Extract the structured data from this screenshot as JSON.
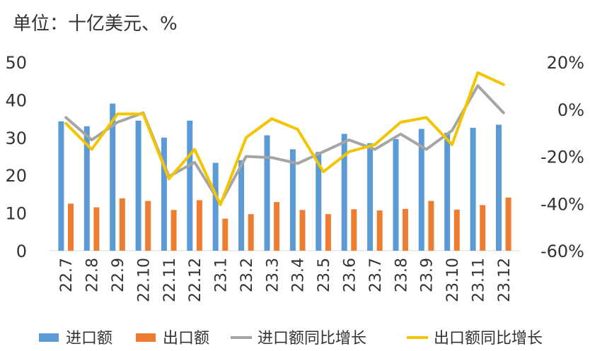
{
  "chart_data": {
    "type": "bar",
    "title": "单位：十亿美元、%",
    "categories": [
      "22.7",
      "22.8",
      "22.9",
      "22.10",
      "22.11",
      "22.12",
      "23.1",
      "23.2",
      "23.3",
      "23.4",
      "23.5",
      "23.6",
      "23.7",
      "23.8",
      "23.9",
      "23.10",
      "23.11",
      "23.12"
    ],
    "y_left": {
      "ticks": [
        0,
        10,
        20,
        30,
        40,
        50
      ],
      "range": [
        0,
        50
      ]
    },
    "y_right": {
      "ticks": [
        "20%",
        "0%",
        "-20%",
        "-40%",
        "-60%"
      ],
      "range": [
        -60,
        20
      ]
    },
    "series": [
      {
        "name": "进口额",
        "kind": "bar",
        "axis": "left",
        "color": "#5B9BD5",
        "values": [
          34.3,
          33.0,
          39.0,
          34.5,
          30.0,
          34.5,
          23.3,
          24.0,
          30.6,
          26.9,
          26.2,
          31.0,
          28.5,
          29.6,
          32.3,
          31.3,
          32.6,
          33.4
        ]
      },
      {
        "name": "出口额",
        "kind": "bar",
        "axis": "left",
        "color": "#ED7D31",
        "values": [
          12.5,
          11.5,
          13.9,
          13.2,
          10.8,
          13.4,
          8.5,
          9.7,
          12.9,
          10.8,
          9.7,
          11.0,
          10.7,
          11.1,
          13.2,
          10.9,
          12.1,
          14.1
        ]
      },
      {
        "name": "进口额同比增长",
        "kind": "line",
        "axis": "right",
        "color": "#A5A5A5",
        "values": [
          -3.5,
          -13.0,
          -5.5,
          -1.5,
          -28.5,
          -22.5,
          -40.0,
          -20.0,
          -20.5,
          -23.0,
          -18.0,
          -13.0,
          -17.0,
          -10.5,
          -17.0,
          -9.0,
          10.0,
          -1.5
        ]
      },
      {
        "name": "出口额同比增长",
        "kind": "line",
        "axis": "right",
        "color": "#F2C500",
        "values": [
          -6.0,
          -17.0,
          -2.0,
          -2.0,
          -29.5,
          -17.0,
          -40.5,
          -12.0,
          -4.0,
          -8.5,
          -26.5,
          -18.0,
          -15.0,
          -5.5,
          -3.5,
          -15.0,
          15.5,
          10.5
        ]
      }
    ],
    "legend_position": "bottom",
    "grid": false
  }
}
